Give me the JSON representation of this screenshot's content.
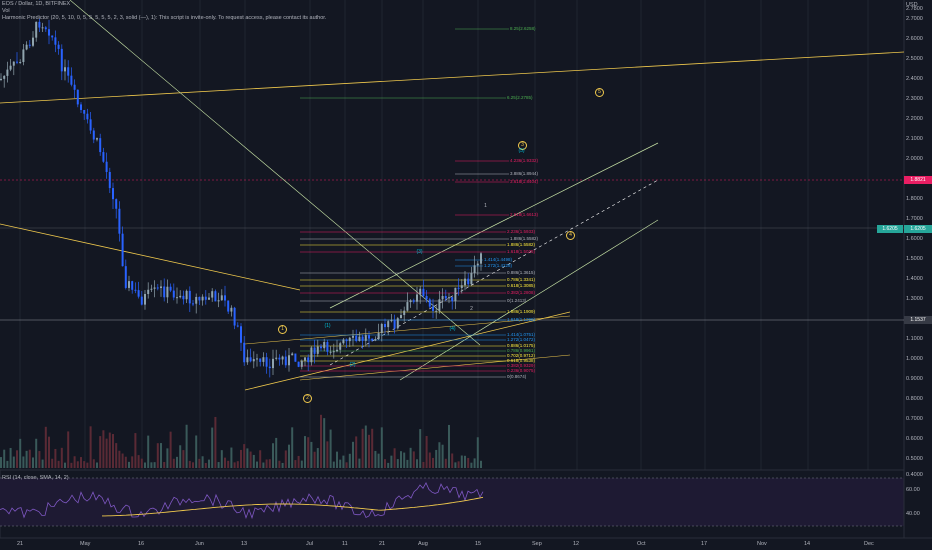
{
  "header": {
    "symbol_line": "EOS / Dollar, 1D, BITFINEX",
    "vol_line": "Vol",
    "indicator_line": "Harmonic Predictor (20, 5, 10, 0, 5, 5, 5, 5, 5, 2, 3, solid (—), 1): This script is invite-only. To request access, please contact its author."
  },
  "price_axis": {
    "unit": "USD",
    "ticks": [
      "2.7800",
      "2.7000",
      "2.6000",
      "2.5000",
      "2.4000",
      "2.3000",
      "2.2000",
      "2.1000",
      "2.0000",
      "1.9000",
      "1.8000",
      "1.7000",
      "1.6000",
      "1.5000",
      "1.4000",
      "1.3000",
      "1.2000",
      "1.1000",
      "1.0000",
      "0.9000",
      "0.8000",
      "0.7000",
      "0.6000",
      "0.5000",
      "0.4000"
    ],
    "tag_red": "1.8821",
    "tag_green": "1.6205",
    "tag_current": "1.1537"
  },
  "time_axis": {
    "ticks": [
      "21",
      "May",
      "16",
      "Jun",
      "13",
      "Jul",
      "11",
      "21",
      "Aug",
      "15",
      "Sep",
      "12",
      "Oct",
      "17",
      "Nov",
      "14",
      "Dec"
    ]
  },
  "rsi": {
    "label": "RSI (14, close, SMA, 14, 2)",
    "ticks": [
      "60.00",
      "40.00"
    ]
  },
  "fib_labels": [
    {
      "text": "8.25(2.6258)",
      "color": "#4caf50"
    },
    {
      "text": "6.25(2.2785)",
      "color": "#4caf50"
    },
    {
      "text": "4.236(1.9332)",
      "color": "#e91e63"
    },
    {
      "text": "3.886(1.8944)",
      "color": "#b2b5be"
    },
    {
      "text": "3.618(1.8404)",
      "color": "#e91e63"
    },
    {
      "text": "2.618(1.6613)",
      "color": "#e91e63"
    },
    {
      "text": "2.236(1.5933)",
      "color": "#e91e63"
    },
    {
      "text": "1.886(1.5582)",
      "color": "#b2b5be"
    },
    {
      "text": "1.886(1.5582)",
      "color": "#ffeb3b"
    },
    {
      "text": "1.618(1.5025)",
      "color": "#e91e63"
    },
    {
      "text": "1.414(1.4498)",
      "color": "#2196f3"
    },
    {
      "text": "1.272(1.4228)",
      "color": "#2196f3"
    },
    {
      "text": "0.886(1.3615)",
      "color": "#b2b5be"
    },
    {
      "text": "0.786(1.3341)",
      "color": "#ffeb3b"
    },
    {
      "text": "0.618(1.3085)",
      "color": "#ffeb3b"
    },
    {
      "text": "0.382(1.2808)",
      "color": "#e91e63"
    },
    {
      "text": "0(1.2413)",
      "color": "#b2b5be"
    },
    {
      "text": "1.886(1.1909)",
      "color": "#ffeb3b"
    },
    {
      "text": "1.618(1.1298)",
      "color": "#2196f3"
    },
    {
      "text": "1.414(1.0751)",
      "color": "#2196f3"
    },
    {
      "text": "1.272(1.0472)",
      "color": "#2196f3"
    },
    {
      "text": "0.886(1.0175)",
      "color": "#ffeb3b"
    },
    {
      "text": "0.786(0.9961)",
      "color": "#4caf50"
    },
    {
      "text": "0.702(0.9712)",
      "color": "#ffeb3b"
    },
    {
      "text": "0.618(0.9538)",
      "color": "#ffeb3b"
    },
    {
      "text": "0.382(0.9329)",
      "color": "#e91e63"
    },
    {
      "text": "0.236(0.9075)",
      "color": "#e91e63"
    },
    {
      "text": "0(0.8674)",
      "color": "#b2b5be"
    }
  ],
  "wave_labels": [
    "1",
    "2",
    "3",
    "4",
    "5",
    "(1)",
    "(2)",
    "(3)",
    "(4)",
    "(5)",
    "1",
    "2"
  ],
  "colors": {
    "background": "#131722",
    "up": "#90a4ae",
    "down": "#2962ff",
    "resistance": "#f0c94d",
    "trend_green": "#c5e1a5",
    "rsi_line": "#7e57c2",
    "rsi_ma": "#f0c94d"
  }
}
